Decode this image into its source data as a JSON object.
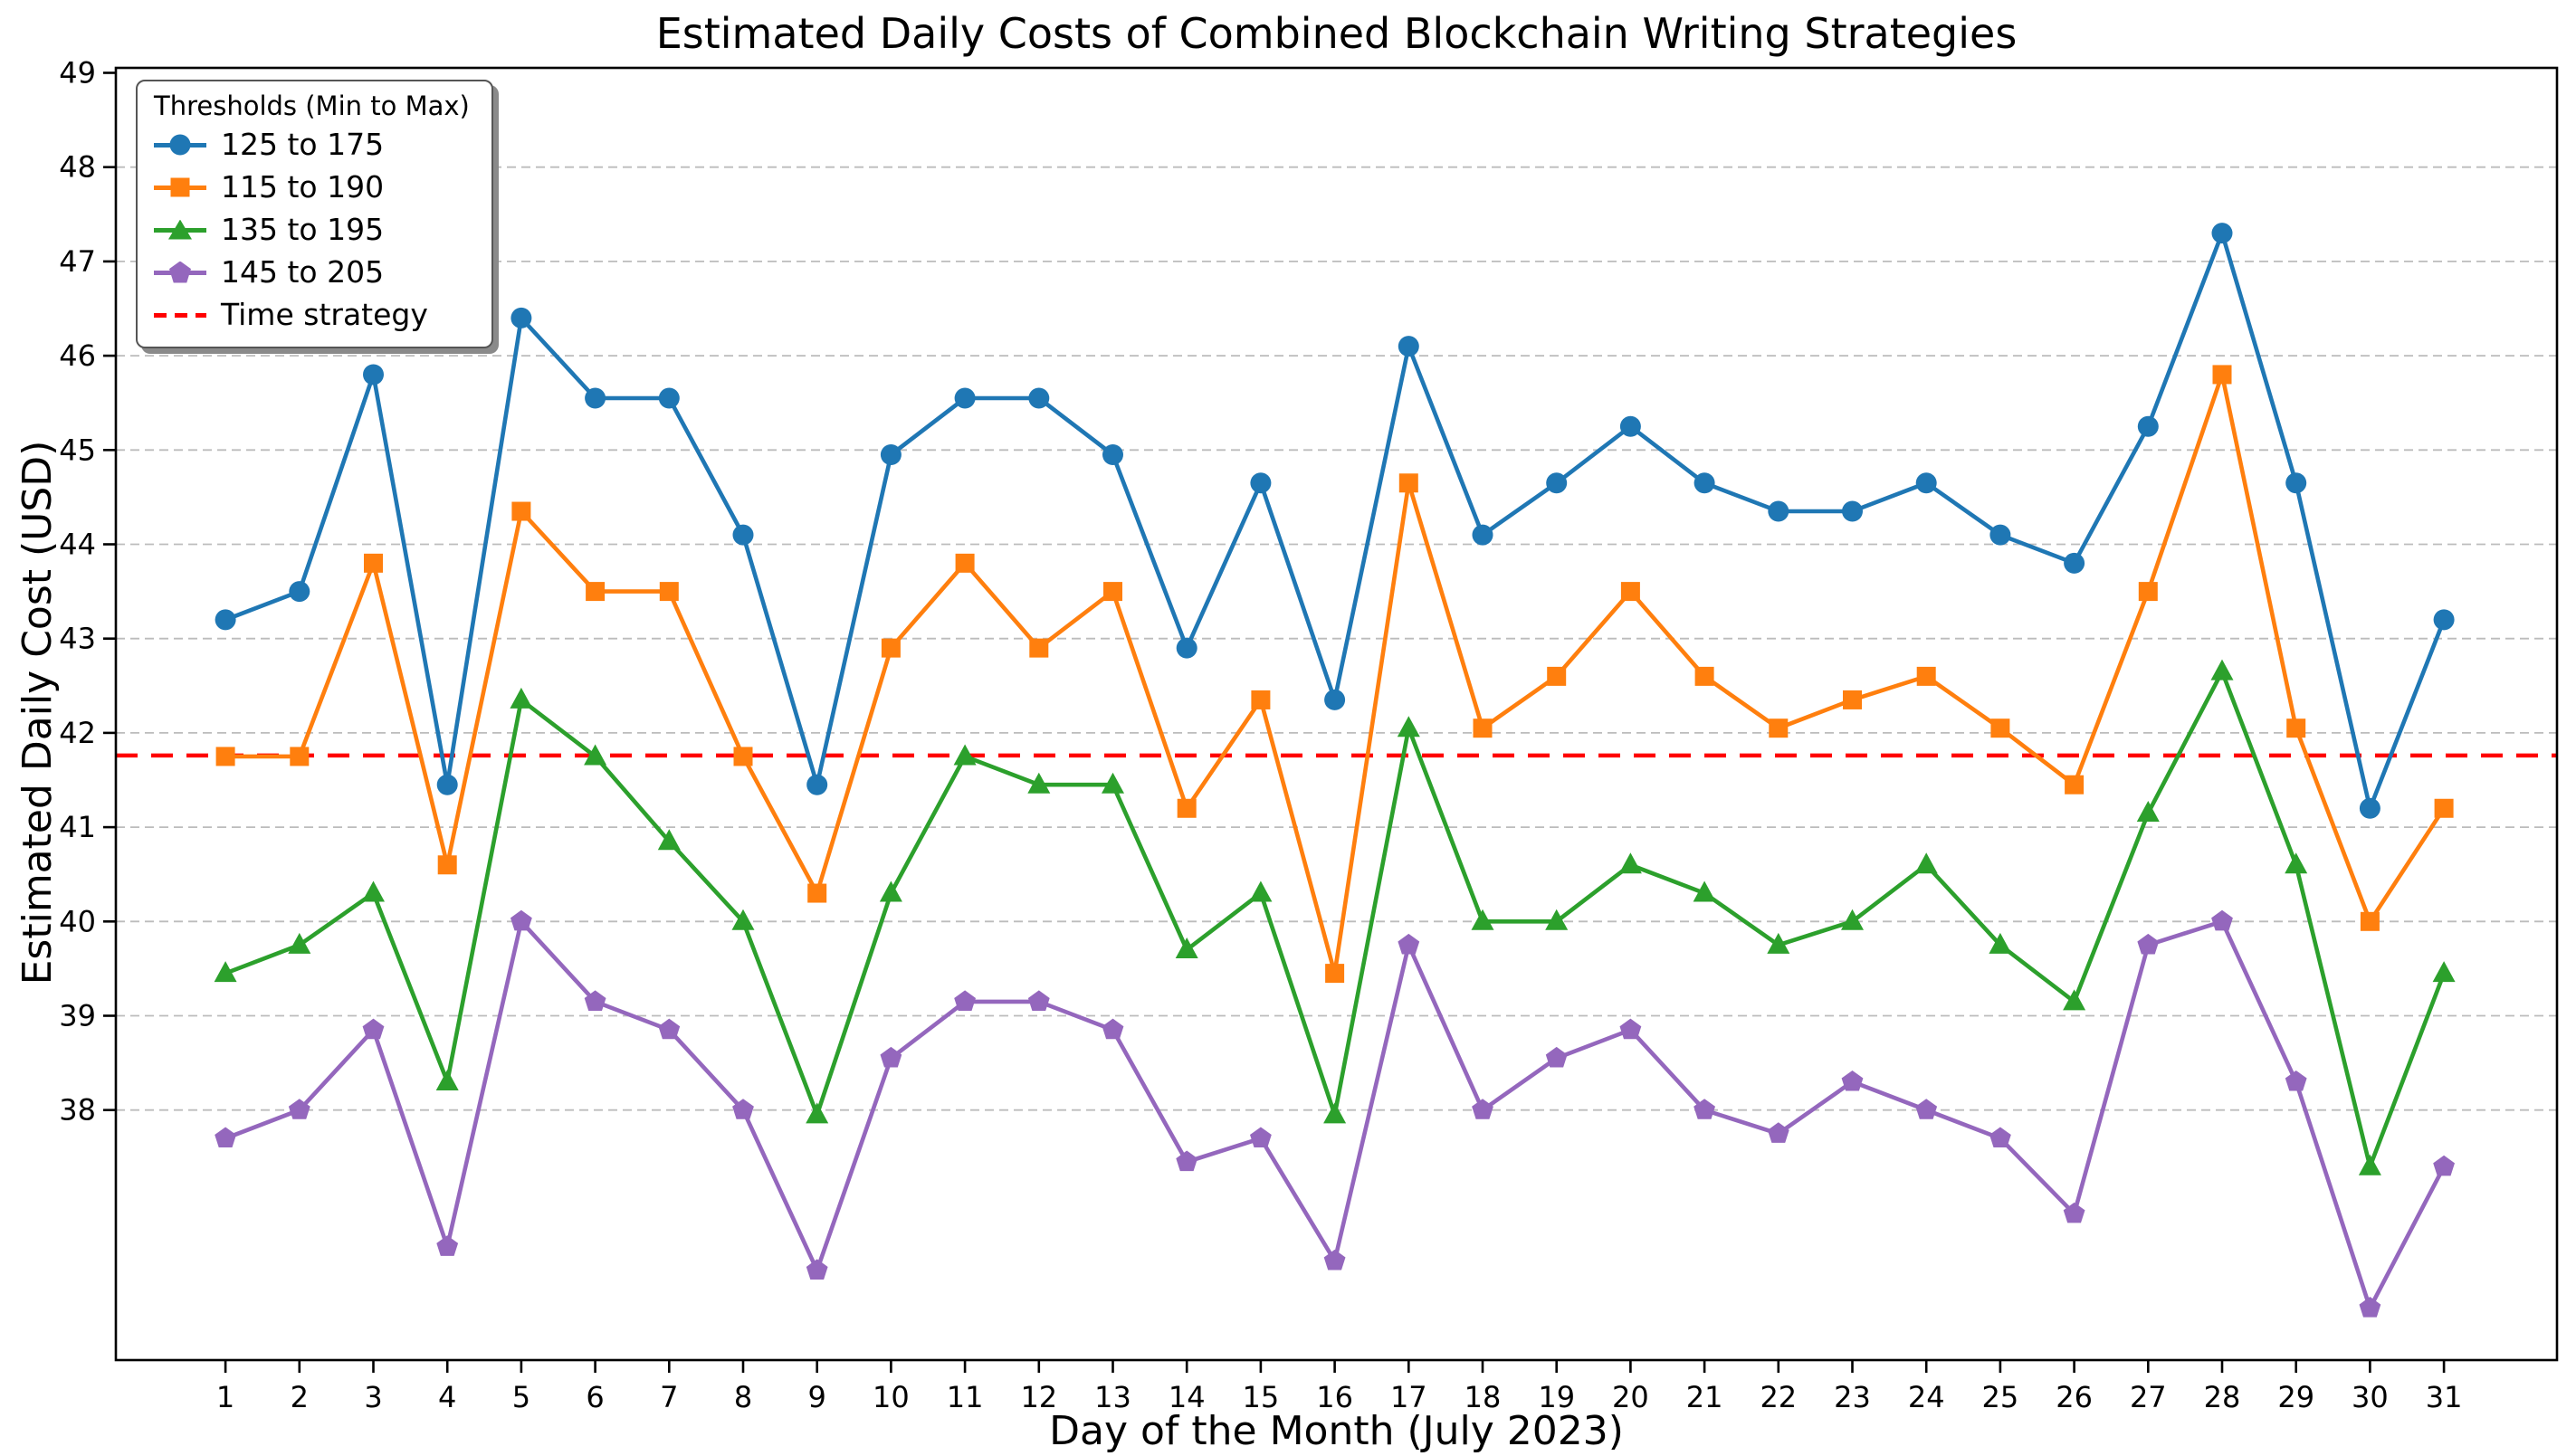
{
  "title": "Estimated Daily Costs of Combined Blockchain Writing Strategies",
  "x_axis": {
    "label": "Day of the Month (July 2023)",
    "ticks": [
      "1",
      "2",
      "3",
      "4",
      "5",
      "6",
      "7",
      "8",
      "9",
      "10",
      "11",
      "12",
      "13",
      "14",
      "15",
      "16",
      "17",
      "18",
      "19",
      "20",
      "21",
      "22",
      "23",
      "24",
      "25",
      "26",
      "27",
      "28",
      "29",
      "30",
      "31"
    ]
  },
  "y_axis": {
    "label": "Estimated Daily Cost (USD)",
    "ticks": [
      38,
      39,
      40,
      41,
      42,
      43,
      44,
      45,
      46,
      47,
      48,
      49
    ]
  },
  "legend": {
    "title": "Thresholds (Min to Max)"
  },
  "chart_data": {
    "type": "line",
    "x": [
      1,
      2,
      3,
      4,
      5,
      6,
      7,
      8,
      9,
      10,
      11,
      12,
      13,
      14,
      15,
      16,
      17,
      18,
      19,
      20,
      21,
      22,
      23,
      24,
      25,
      26,
      27,
      28,
      29,
      30,
      31
    ],
    "series": [
      {
        "name": "125 to 175",
        "color": "#1f77b4",
        "marker": "circle",
        "values": [
          43.2,
          43.5,
          45.8,
          41.45,
          46.4,
          45.55,
          45.55,
          44.1,
          41.45,
          44.95,
          45.55,
          45.55,
          44.95,
          42.9,
          44.65,
          42.35,
          46.1,
          44.1,
          44.65,
          45.25,
          44.65,
          44.35,
          44.35,
          44.65,
          44.1,
          43.8,
          45.25,
          47.3,
          44.65,
          41.2,
          43.2
        ]
      },
      {
        "name": "115 to 190",
        "color": "#ff7f0e",
        "marker": "square",
        "values": [
          41.75,
          41.75,
          43.8,
          40.6,
          44.35,
          43.5,
          43.5,
          41.75,
          40.3,
          42.9,
          43.8,
          42.9,
          43.5,
          41.2,
          42.35,
          39.45,
          44.65,
          42.05,
          42.6,
          43.5,
          42.6,
          42.05,
          42.35,
          42.6,
          42.05,
          41.45,
          43.5,
          45.8,
          42.05,
          40.0,
          41.2
        ]
      },
      {
        "name": "135 to 195",
        "color": "#2ca02c",
        "marker": "triangle",
        "values": [
          39.45,
          39.75,
          40.3,
          38.3,
          42.35,
          41.75,
          40.85,
          40.0,
          37.95,
          40.3,
          41.75,
          41.45,
          41.45,
          39.7,
          40.3,
          37.95,
          42.05,
          40.0,
          40.0,
          40.6,
          40.3,
          39.75,
          40.0,
          40.6,
          39.75,
          39.15,
          41.15,
          42.65,
          40.6,
          37.4,
          39.45
        ]
      },
      {
        "name": "145 to 205",
        "color": "#9467bd",
        "marker": "pentagon",
        "values": [
          37.7,
          38.0,
          38.85,
          36.55,
          40.0,
          39.15,
          38.85,
          38.0,
          36.3,
          38.55,
          39.15,
          39.15,
          38.85,
          37.45,
          37.7,
          36.4,
          39.75,
          38.0,
          38.55,
          38.85,
          38.0,
          37.75,
          38.3,
          38.0,
          37.7,
          36.9,
          39.75,
          40.0,
          38.3,
          35.9,
          37.4
        ]
      }
    ],
    "reference_line": {
      "name": "Time strategy",
      "value": 41.76,
      "color": "#ff0000",
      "style": "dashed"
    },
    "title": "Estimated Daily Costs of Combined Blockchain Writing Strategies",
    "xlabel": "Day of the Month (July 2023)",
    "ylabel": "Estimated Daily Cost (USD)",
    "ylim": [
      35.35,
      49.05
    ],
    "xlim": [
      -0.48,
      31.48
    ],
    "grid": true,
    "grid_style": "dashed",
    "legend_position": "upper left"
  }
}
